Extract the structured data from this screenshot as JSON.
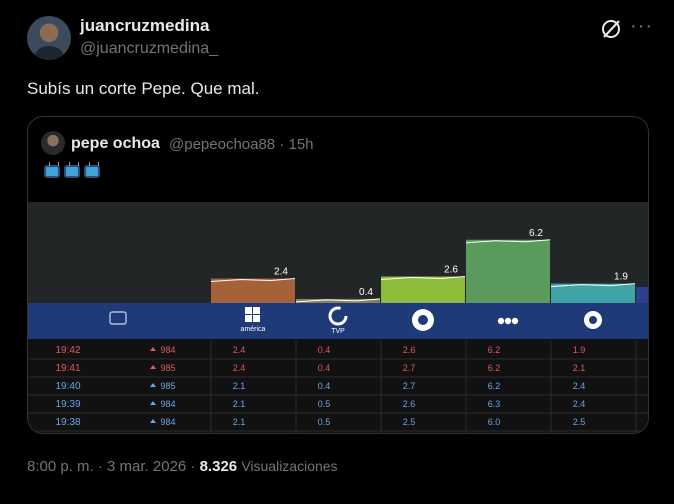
{
  "tweet": {
    "author_name": "juancruzmedina",
    "author_handle": "@juancruzmedina_",
    "text": "Subís un corte Pepe. Que mal.",
    "time": "8:00 p. m. · 3 mar. 2026 · ",
    "views_count": "8.326",
    "views_label": "Visualizaciones",
    "more_icon": "more-icon",
    "grok_icon": "grok-icon"
  },
  "quote": {
    "author_name": "pepe ochoa",
    "author_handle": "@pepeochoa88 · 15h",
    "emoji": "tv-emoji",
    "emoji_count": 3
  },
  "ratings": {
    "channels": [
      "américa",
      "TVP",
      "",
      "",
      ""
    ],
    "bars": [
      {
        "value": 2.4,
        "label": "2.4",
        "color": "#a5623a"
      },
      {
        "value": 0.4,
        "label": "0.4",
        "color": "#8a7f5c"
      },
      {
        "value": 2.6,
        "label": "2.6",
        "color": "#8dbb3c"
      },
      {
        "value": 6.2,
        "label": "6.2",
        "color": "#5a9a5c"
      },
      {
        "value": 1.9,
        "label": "1.9",
        "color": "#3fa3a8"
      }
    ],
    "rows": [
      {
        "time": "19:42",
        "viewers": "984",
        "trend": "up",
        "v": [
          "2.4",
          "0.4",
          "2.6",
          "6.2",
          "1.9"
        ],
        "color": "#e05a5a"
      },
      {
        "time": "19:41",
        "viewers": "985",
        "trend": "up",
        "v": [
          "2.4",
          "0.4",
          "2.7",
          "6.2",
          "2.1"
        ],
        "color": "#e05a5a"
      },
      {
        "time": "19:40",
        "viewers": "985",
        "trend": "up",
        "v": [
          "2.1",
          "0.4",
          "2.7",
          "6.2",
          "2.4"
        ],
        "color": "#6aa6e8"
      },
      {
        "time": "19:39",
        "viewers": "984",
        "trend": "up",
        "v": [
          "2.1",
          "0.5",
          "2.6",
          "6.3",
          "2.4"
        ],
        "color": "#6aa6e8"
      },
      {
        "time": "19:38",
        "viewers": "984",
        "trend": "up",
        "v": [
          "2.1",
          "0.5",
          "2.5",
          "6.0",
          "2.5"
        ],
        "color": "#6aa6e8"
      }
    ]
  }
}
